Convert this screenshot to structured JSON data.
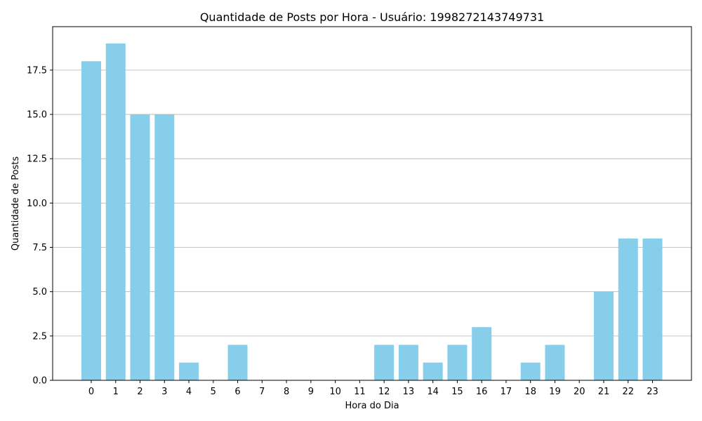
{
  "chart_data": {
    "type": "bar",
    "title": "Quantidade de Posts por Hora - Usuário: 1998272143749731",
    "xlabel": "Hora do Dia",
    "ylabel": "Quantidade de Posts",
    "categories": [
      "0",
      "1",
      "2",
      "3",
      "4",
      "5",
      "6",
      "7",
      "8",
      "9",
      "10",
      "11",
      "12",
      "13",
      "14",
      "15",
      "16",
      "17",
      "18",
      "19",
      "20",
      "21",
      "22",
      "23"
    ],
    "values": [
      18,
      19,
      15,
      15,
      1,
      0,
      2,
      0,
      0,
      0,
      0,
      0,
      2,
      2,
      1,
      2,
      3,
      0,
      1,
      2,
      0,
      5,
      8,
      8
    ],
    "ylim": [
      0,
      19.95
    ],
    "yticks": [
      "0.0",
      "2.5",
      "5.0",
      "7.5",
      "10.0",
      "12.5",
      "15.0",
      "17.5"
    ],
    "ytick_values": [
      0,
      2.5,
      5,
      7.5,
      10,
      12.5,
      15,
      17.5
    ],
    "grid": "y",
    "bar_color": "#87CEEB"
  }
}
